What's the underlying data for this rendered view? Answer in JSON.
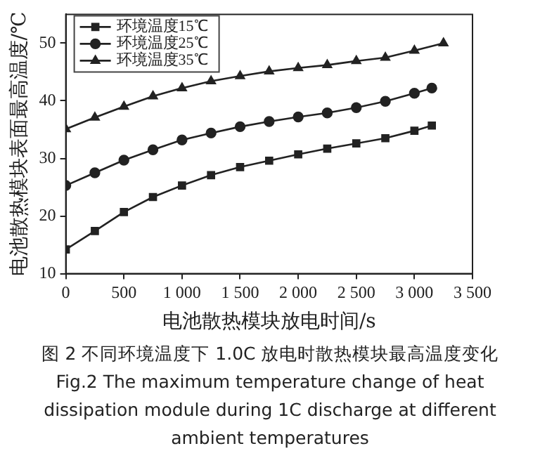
{
  "chart_data": {
    "type": "line",
    "xlabel": "电池散热模块放电时间/s",
    "ylabel": "电池散热模块表面最高温度/℃",
    "annotations": [
      "图 2 不同环境温度下 1.0C 放电时散热模块最高温度变化",
      "Fig.2 The maximum temperature change of heat dissipation module during 1C discharge at different ambient temperatures"
    ],
    "x": [
      0,
      250,
      500,
      750,
      1000,
      1250,
      1500,
      1750,
      2000,
      2250,
      2500,
      2750,
      3000,
      3150
    ],
    "series": [
      {
        "name": "环境温度15℃",
        "color": "#222222",
        "marker": "square",
        "values": [
          14.2,
          17.4,
          20.7,
          23.3,
          25.3,
          27.1,
          28.5,
          29.6,
          30.7,
          31.7,
          32.6,
          33.5,
          34.8,
          35.7
        ]
      },
      {
        "name": "环境温度25℃",
        "color": "#222222",
        "marker": "circle",
        "values": [
          25.3,
          27.5,
          29.7,
          31.5,
          33.2,
          34.4,
          35.5,
          36.4,
          37.2,
          37.9,
          38.8,
          39.9,
          41.3,
          42.2
        ]
      },
      {
        "name": "环境温度35℃",
        "color": "#222222",
        "marker": "triangle",
        "x": [
          0,
          250,
          500,
          750,
          1000,
          1250,
          1500,
          1750,
          2000,
          2250,
          2500,
          2750,
          3000,
          3250
        ],
        "values": [
          35.1,
          37.1,
          39.0,
          40.8,
          42.2,
          43.4,
          44.3,
          45.1,
          45.7,
          46.2,
          46.9,
          47.5,
          48.7,
          50.0
        ]
      }
    ],
    "xlim": [
      0,
      3500
    ],
    "xticks": [
      0,
      500,
      {
        "value": 1000,
        "label": "1 000"
      },
      {
        "value": 1500,
        "label": "1 500"
      },
      {
        "value": 2000,
        "label": "2 000"
      },
      {
        "value": 2500,
        "label": "2 500"
      },
      {
        "value": 3000,
        "label": "3 000"
      },
      {
        "value": 3500,
        "label": "3 500"
      }
    ],
    "ylim": [
      10,
      55
    ],
    "yticks": [
      10,
      20,
      30,
      40,
      50
    ],
    "grid": false,
    "legend": "top left",
    "line_style": "solid"
  }
}
